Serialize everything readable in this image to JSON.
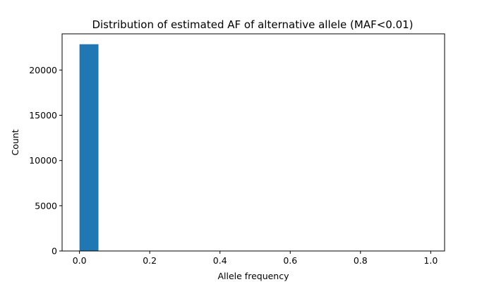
{
  "chart_data": {
    "type": "bar",
    "title": "Distribution of estimated AF of alternative allele (MAF<0.01)",
    "xlabel": "Allele frequency",
    "ylabel": "Count",
    "xlim": [
      -0.0495,
      1.0395
    ],
    "ylim": [
      0,
      24000
    ],
    "xticks": [
      0.0,
      0.2,
      0.4,
      0.6,
      0.8,
      1.0
    ],
    "xtick_labels": [
      "0.0",
      "0.2",
      "0.4",
      "0.6",
      "0.8",
      "1.0"
    ],
    "yticks": [
      0,
      5000,
      10000,
      15000,
      20000
    ],
    "ytick_labels": [
      "0",
      "5000",
      "10000",
      "15000",
      "20000"
    ],
    "bins": [
      {
        "x0": 0.0,
        "x1": 0.054,
        "count": 22850
      },
      {
        "x0": 0.054,
        "x1": 0.108,
        "count": 0
      },
      {
        "x0": 0.108,
        "x1": 0.162,
        "count": 0
      },
      {
        "x0": 0.162,
        "x1": 0.216,
        "count": 0
      },
      {
        "x0": 0.216,
        "x1": 0.27,
        "count": 0
      },
      {
        "x0": 0.27,
        "x1": 0.324,
        "count": 0
      },
      {
        "x0": 0.324,
        "x1": 0.378,
        "count": 0
      },
      {
        "x0": 0.378,
        "x1": 0.432,
        "count": 0
      },
      {
        "x0": 0.432,
        "x1": 0.486,
        "count": 0
      },
      {
        "x0": 0.486,
        "x1": 0.54,
        "count": 0
      },
      {
        "x0": 0.54,
        "x1": 0.594,
        "count": 0
      },
      {
        "x0": 0.594,
        "x1": 0.648,
        "count": 0
      },
      {
        "x0": 0.648,
        "x1": 0.702,
        "count": 0
      },
      {
        "x0": 0.702,
        "x1": 0.756,
        "count": 0
      },
      {
        "x0": 0.756,
        "x1": 0.81,
        "count": 0
      },
      {
        "x0": 0.81,
        "x1": 0.864,
        "count": 0
      },
      {
        "x0": 0.864,
        "x1": 0.918,
        "count": 0
      },
      {
        "x0": 0.918,
        "x1": 0.972,
        "count": 0
      },
      {
        "x0": 0.972,
        "x1": 0.99,
        "count": 0
      }
    ],
    "bar_color": "#1f77b4",
    "grid": false,
    "legend": "none"
  }
}
